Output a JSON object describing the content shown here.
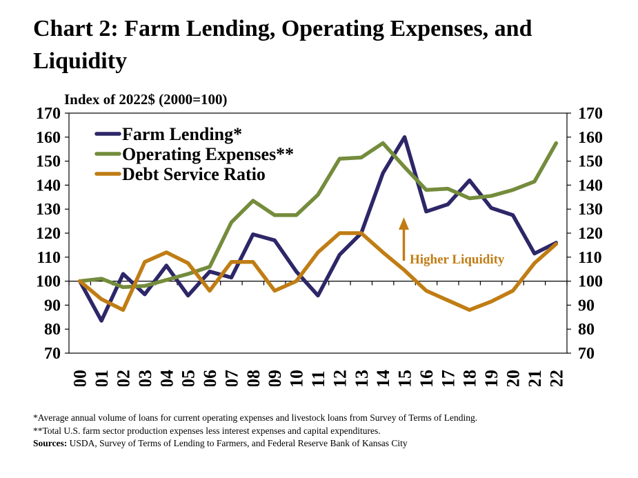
{
  "title": {
    "line1": "Chart 2: Farm Lending, Operating Expenses, and",
    "line2": "Liquidity"
  },
  "chart_data": {
    "type": "line",
    "title": "Chart 2: Farm Lending, Operating Expenses, and Liquidity",
    "ylabel": "Index of 2022$ (2000=100)",
    "ylim": [
      70,
      170
    ],
    "ytick_step": 10,
    "grid": "off",
    "legend_position": "top-left-inside",
    "baseline_axis_at": 100,
    "categories": [
      2000,
      2001,
      2002,
      2003,
      2004,
      2005,
      2006,
      2007,
      2008,
      2009,
      2010,
      2011,
      2012,
      2013,
      2014,
      2015,
      2016,
      2017,
      2018,
      2019,
      2020,
      2021,
      2022
    ],
    "series": [
      {
        "name": "Farm Lending*",
        "color": "#2D2768",
        "values": [
          100,
          83.5,
          103,
          94.5,
          106.5,
          94,
          104,
          101.5,
          119.5,
          117,
          104,
          94,
          111,
          120,
          145,
          160,
          129,
          132,
          142,
          130.5,
          127.5,
          111.5,
          116
        ]
      },
      {
        "name": "Operating Expenses**",
        "color": "#748C3C",
        "values": [
          100,
          101,
          97.5,
          98,
          100.5,
          103,
          106,
          124.5,
          133.5,
          127.5,
          127.5,
          136,
          151,
          151.5,
          157.5,
          147.5,
          138,
          138.5,
          134.5,
          135.5,
          138,
          141.5,
          157.5
        ]
      },
      {
        "name": "Debt Service Ratio",
        "color": "#C07D14",
        "values": [
          100,
          92.5,
          88,
          108,
          112,
          107.5,
          96,
          108,
          108,
          96,
          100,
          112,
          120,
          120,
          112,
          104.5,
          96,
          92,
          88,
          91.5,
          96,
          107.5,
          115.5
        ]
      }
    ],
    "annotation": {
      "text": "Higher Liquidity",
      "color": "#C07D14",
      "arrow": "up"
    }
  },
  "axis": {
    "y_ticks": [
      170,
      160,
      150,
      140,
      130,
      120,
      110,
      100,
      90,
      80,
      70
    ]
  },
  "footnotes": {
    "line1": "*Average annual volume of loans for current operating expenses and livestock loans from Survey of Terms of Lending.",
    "line2": "**Total U.S. farm sector production expenses less interest expenses and capital expenditures.",
    "sources_label": "Sources:",
    "sources_rest": " USDA, Survey of Terms of Lending to Farmers, and Federal Reserve Bank of Kansas City"
  }
}
